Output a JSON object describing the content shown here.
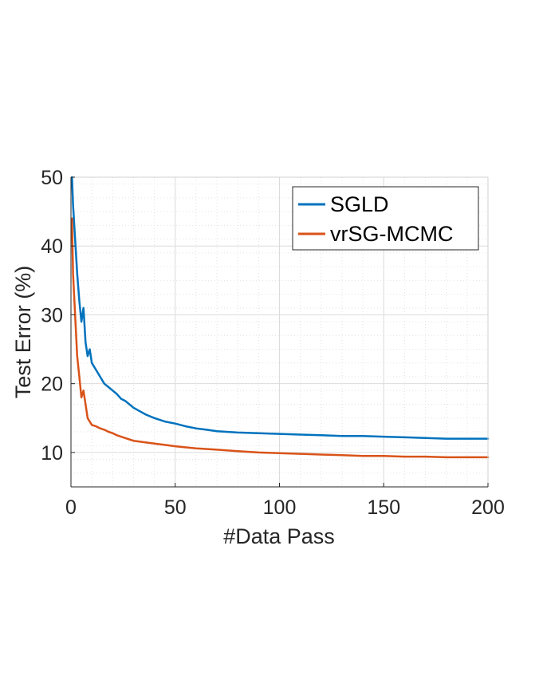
{
  "chart_data": {
    "type": "line",
    "xlabel": "#Data Pass",
    "ylabel": "Test Error (%)",
    "xlim": [
      0,
      200
    ],
    "ylim": [
      5,
      50
    ],
    "xticks": [
      0,
      50,
      100,
      150,
      200
    ],
    "yticks": [
      10,
      20,
      30,
      40,
      50
    ],
    "grid": "on (major + minor, dotted)",
    "legend_position": "top-right",
    "series": [
      {
        "name": "SGLD",
        "color": "#0072BD",
        "x": [
          0.5,
          1,
          2,
          3,
          4,
          5,
          6,
          7,
          8,
          9,
          10,
          12,
          14,
          16,
          18,
          20,
          22,
          24,
          26,
          28,
          30,
          33,
          36,
          40,
          45,
          50,
          55,
          60,
          65,
          70,
          80,
          90,
          100,
          110,
          120,
          130,
          140,
          150,
          160,
          170,
          180,
          190,
          200
        ],
        "y": [
          50,
          46,
          41,
          36,
          32,
          29,
          31,
          26,
          24,
          25,
          23,
          22,
          21,
          20,
          19.5,
          19,
          18.5,
          17.8,
          17.5,
          17,
          16.5,
          16,
          15.5,
          15,
          14.5,
          14.2,
          13.8,
          13.5,
          13.3,
          13.1,
          12.9,
          12.8,
          12.7,
          12.6,
          12.5,
          12.4,
          12.4,
          12.3,
          12.2,
          12.1,
          12.0,
          12.0,
          12.0
        ]
      },
      {
        "name": "vrSG-MCMC",
        "color": "#D95319",
        "x": [
          0.5,
          1,
          2,
          3,
          4,
          5,
          6,
          7,
          8,
          9,
          10,
          12,
          14,
          16,
          18,
          20,
          22,
          24,
          26,
          28,
          30,
          35,
          40,
          45,
          50,
          60,
          70,
          80,
          90,
          100,
          110,
          120,
          130,
          140,
          150,
          160,
          170,
          180,
          190,
          200
        ],
        "y": [
          44,
          36,
          30,
          24,
          21,
          18,
          19,
          17,
          15,
          14.5,
          14,
          13.8,
          13.5,
          13.3,
          13,
          12.8,
          12.5,
          12.3,
          12.1,
          11.9,
          11.7,
          11.5,
          11.3,
          11.1,
          10.9,
          10.6,
          10.4,
          10.2,
          10.0,
          9.9,
          9.8,
          9.7,
          9.6,
          9.5,
          9.5,
          9.4,
          9.4,
          9.3,
          9.3,
          9.3
        ]
      }
    ]
  }
}
